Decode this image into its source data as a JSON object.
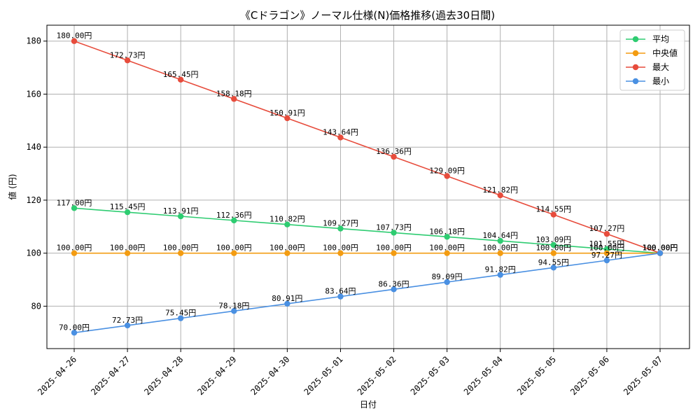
{
  "chart_data": {
    "type": "line",
    "title": "《Cドラゴン》ノーマル仕様(N)価格推移(過去30日間)",
    "xlabel": "日付",
    "ylabel": "値 (円)",
    "ylim": [
      64,
      186
    ],
    "yticks": [
      80,
      100,
      120,
      140,
      160,
      180
    ],
    "categories": [
      "2025-04-26",
      "2025-04-27",
      "2025-04-28",
      "2025-04-29",
      "2025-04-30",
      "2025-05-01",
      "2025-05-02",
      "2025-05-03",
      "2025-05-04",
      "2025-05-05",
      "2025-05-06",
      "2025-05-07"
    ],
    "grid": true,
    "legend_position": "top-right",
    "value_suffix": "円",
    "series": [
      {
        "name": "平均",
        "color": "#2ecc71",
        "values": [
          117.0,
          115.45,
          113.91,
          112.36,
          110.82,
          109.27,
          107.73,
          106.18,
          104.64,
          103.09,
          101.55,
          100.0
        ]
      },
      {
        "name": "中央値",
        "color": "#f39c12",
        "values": [
          100.0,
          100.0,
          100.0,
          100.0,
          100.0,
          100.0,
          100.0,
          100.0,
          100.0,
          100.0,
          100.0,
          100.0
        ]
      },
      {
        "name": "最大",
        "color": "#e74c3c",
        "values": [
          180.0,
          172.73,
          165.45,
          158.18,
          150.91,
          143.64,
          136.36,
          129.09,
          121.82,
          114.55,
          107.27,
          100.0
        ]
      },
      {
        "name": "最小",
        "color": "#4a90e2",
        "values": [
          70.0,
          72.73,
          75.45,
          78.18,
          80.91,
          83.64,
          86.36,
          89.09,
          91.82,
          94.55,
          97.27,
          100.0
        ]
      }
    ]
  }
}
